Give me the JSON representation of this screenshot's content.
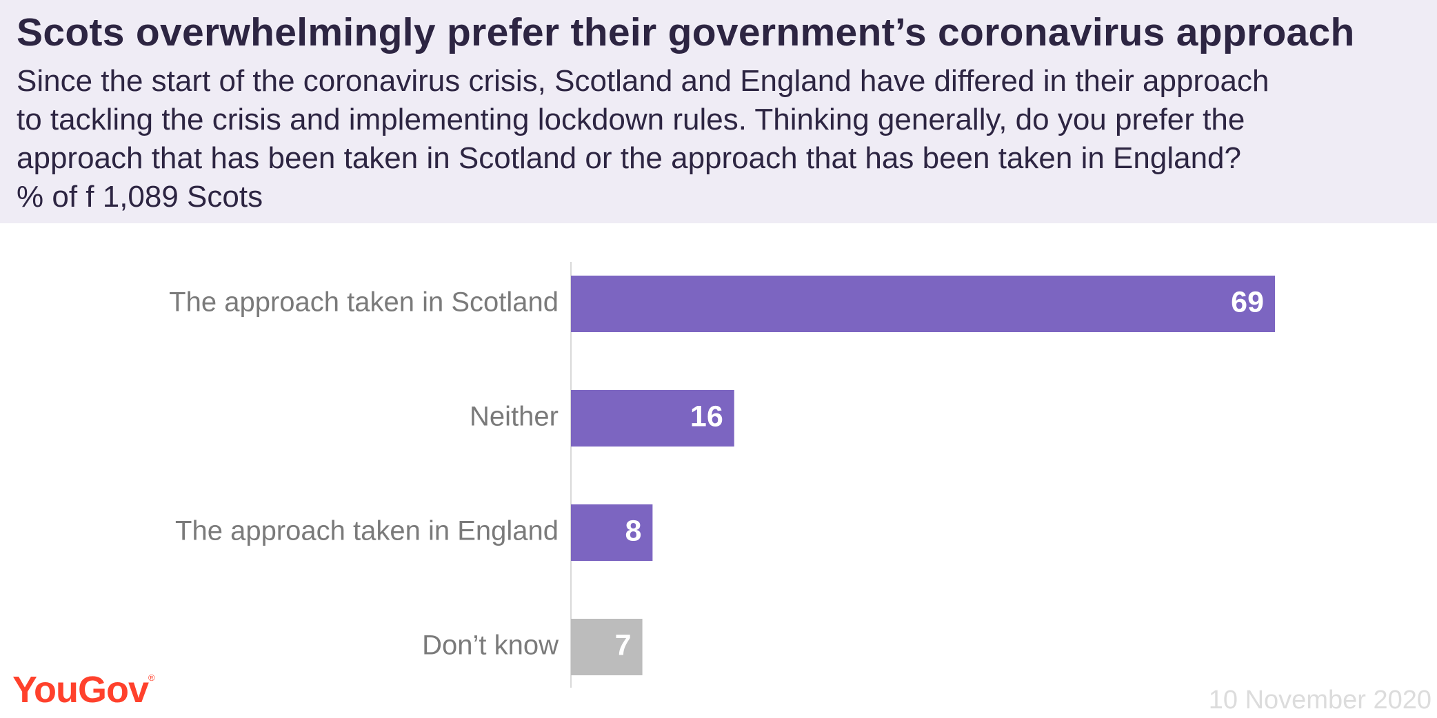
{
  "header": {
    "title": "Scots overwhelmingly prefer their government’s coronavirus approach",
    "subtitle_lines": [
      "Since the start of the coronavirus crisis, Scotland and England have differed in their approach",
      "to tackling the crisis and implementing lockdown rules. Thinking generally, do you prefer the",
      "approach that has been taken in Scotland or the approach that has been taken in England?",
      "% of f 1,089 Scots"
    ]
  },
  "chart_data": {
    "type": "bar",
    "orientation": "horizontal",
    "categories": [
      "The approach taken in Scotland",
      "Neither",
      "The approach taken in England",
      "Don’t know"
    ],
    "values": [
      69,
      16,
      8,
      7
    ],
    "colors": [
      "#7c65c1",
      "#7c65c1",
      "#7c65c1",
      "#bcbcbc"
    ],
    "value_labels": [
      "69",
      "16",
      "8",
      "7"
    ],
    "xlim": [
      0,
      100
    ],
    "grid": false,
    "legend": "none"
  },
  "footer": {
    "brand": "YouGov",
    "brand_mark": "®",
    "brand_color": "#ff412c",
    "date": "10 November 2020"
  }
}
